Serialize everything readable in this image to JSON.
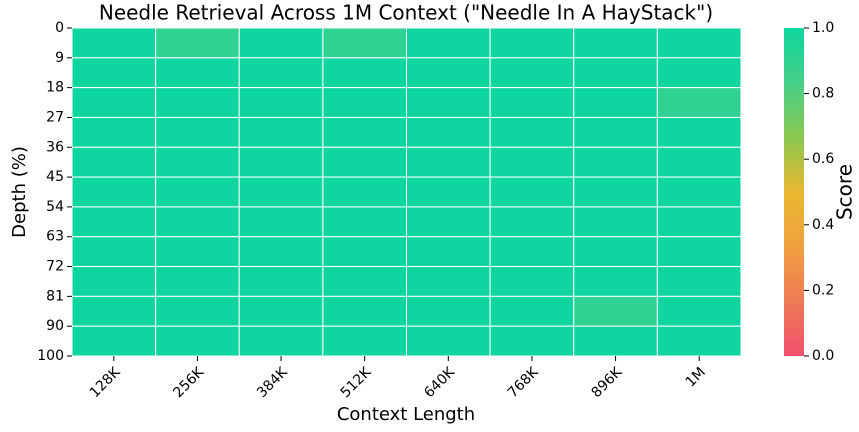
{
  "chart_data": {
    "type": "heatmap",
    "title": "Needle Retrieval Across 1M Context (\"Needle In A HayStack\")",
    "x_label": "Context Length",
    "y_label": "Depth (%)",
    "colorbar_label": "Score",
    "categories": [
      "128K",
      "256K",
      "384K",
      "512K",
      "640K",
      "768K",
      "896K",
      "1M"
    ],
    "yticks": [
      0,
      9,
      18,
      27,
      36,
      45,
      54,
      63,
      72,
      81,
      90,
      100
    ],
    "values": [
      [
        1,
        0.9,
        1,
        0.9,
        1,
        1,
        1,
        1
      ],
      [
        1,
        1,
        1,
        1,
        1,
        1,
        1,
        1
      ],
      [
        1,
        1,
        1,
        1,
        1,
        1,
        1,
        0.9
      ],
      [
        1,
        1,
        1,
        1,
        1,
        1,
        1,
        1
      ],
      [
        1,
        1,
        1,
        1,
        1,
        1,
        1,
        1
      ],
      [
        1,
        1,
        1,
        1,
        1,
        1,
        1,
        1
      ],
      [
        1,
        1,
        1,
        1,
        1,
        1,
        1,
        1
      ],
      [
        1,
        1,
        1,
        1,
        1,
        1,
        1,
        1
      ],
      [
        1,
        1,
        1,
        1,
        1,
        1,
        1,
        1
      ],
      [
        1,
        1,
        1,
        1,
        1,
        1,
        0.9,
        1
      ],
      [
        1,
        1,
        1,
        1,
        1,
        1,
        1,
        1
      ]
    ],
    "zlim": [
      0,
      1
    ],
    "zticks": [
      {
        "value": 0,
        "label": "0.0"
      },
      0.2,
      0.4,
      0.6,
      0.8,
      {
        "value": 1,
        "label": "1.0"
      }
    ],
    "colors": [
      "#f0506e",
      "#f07a55",
      "#f0a040",
      "#e8b830",
      "#8cc850",
      "#45cf88",
      "#0fd6a0"
    ]
  }
}
